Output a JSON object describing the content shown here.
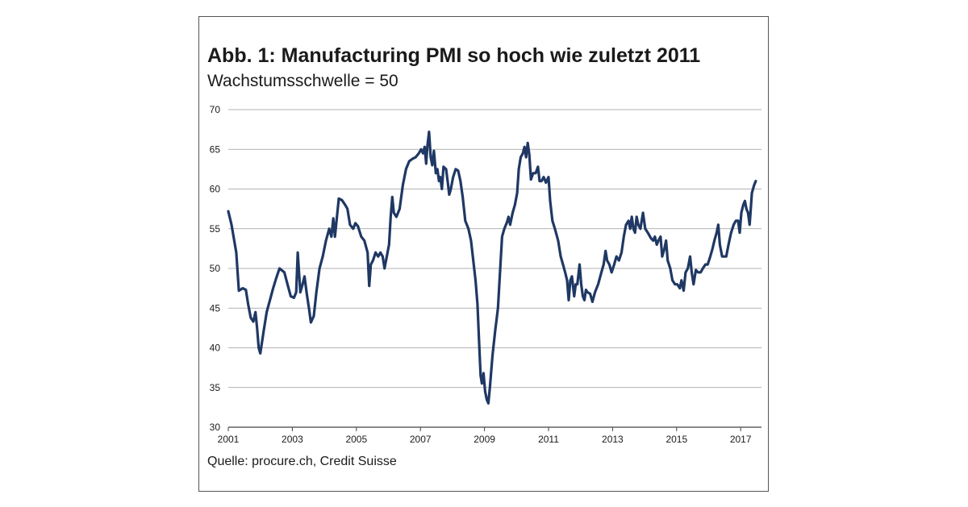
{
  "figure": {
    "title": "Abb. 1: Manufacturing PMI so hoch wie zuletzt 2011",
    "subtitle": "Wachstumsschwelle = 50",
    "source": "Quelle: procure.ch, Credit Suisse"
  },
  "chart_data": {
    "type": "line",
    "title": "Abb. 1: Manufacturing PMI so hoch wie zuletzt 2011",
    "subtitle": "Wachstumsschwelle = 50",
    "xlabel": "",
    "ylabel": "",
    "xlim": [
      2001,
      2017.65
    ],
    "ylim": [
      30,
      70
    ],
    "yticks": [
      30,
      35,
      40,
      45,
      50,
      55,
      60,
      65,
      70
    ],
    "xticks": [
      "2001",
      "2003",
      "2005",
      "2007",
      "2009",
      "2011",
      "2013",
      "2015",
      "2017"
    ],
    "grid": "horizontal",
    "line_color": "#1f3864",
    "series": [
      {
        "values": [
          [
            2001.0,
            57.2
          ],
          [
            2001.1,
            55.5
          ],
          [
            2001.25,
            52.0
          ],
          [
            2001.33,
            47.2
          ],
          [
            2001.45,
            47.5
          ],
          [
            2001.55,
            47.3
          ],
          [
            2001.62,
            45.5
          ],
          [
            2001.7,
            43.8
          ],
          [
            2001.78,
            43.3
          ],
          [
            2001.85,
            44.5
          ],
          [
            2001.9,
            42.5
          ],
          [
            2001.95,
            40.0
          ],
          [
            2002.0,
            39.3
          ],
          [
            2002.1,
            42.0
          ],
          [
            2002.2,
            44.5
          ],
          [
            2002.3,
            46.0
          ],
          [
            2002.4,
            47.5
          ],
          [
            2002.5,
            48.8
          ],
          [
            2002.6,
            50.0
          ],
          [
            2002.75,
            49.5
          ],
          [
            2002.85,
            48.0
          ],
          [
            2002.95,
            46.5
          ],
          [
            2003.05,
            46.3
          ],
          [
            2003.12,
            47.0
          ],
          [
            2003.17,
            52.0
          ],
          [
            2003.25,
            47.0
          ],
          [
            2003.32,
            48.0
          ],
          [
            2003.38,
            49.0
          ],
          [
            2003.45,
            46.8
          ],
          [
            2003.52,
            45.0
          ],
          [
            2003.58,
            43.2
          ],
          [
            2003.67,
            44.0
          ],
          [
            2003.75,
            47.0
          ],
          [
            2003.85,
            50.0
          ],
          [
            2003.95,
            51.5
          ],
          [
            2004.05,
            53.5
          ],
          [
            2004.15,
            55.0
          ],
          [
            2004.22,
            54.0
          ],
          [
            2004.28,
            56.3
          ],
          [
            2004.33,
            54.0
          ],
          [
            2004.38,
            56.0
          ],
          [
            2004.45,
            58.8
          ],
          [
            2004.55,
            58.6
          ],
          [
            2004.65,
            58.0
          ],
          [
            2004.72,
            57.5
          ],
          [
            2004.8,
            55.5
          ],
          [
            2004.9,
            55.0
          ],
          [
            2004.97,
            55.7
          ],
          [
            2005.05,
            55.3
          ],
          [
            2005.15,
            54.0
          ],
          [
            2005.25,
            53.5
          ],
          [
            2005.35,
            52.0
          ],
          [
            2005.4,
            47.8
          ],
          [
            2005.45,
            50.5
          ],
          [
            2005.52,
            51.0
          ],
          [
            2005.6,
            52.0
          ],
          [
            2005.68,
            51.5
          ],
          [
            2005.75,
            52.0
          ],
          [
            2005.82,
            51.5
          ],
          [
            2005.88,
            50.0
          ],
          [
            2005.95,
            51.5
          ],
          [
            2006.02,
            53.0
          ],
          [
            2006.07,
            56.5
          ],
          [
            2006.12,
            59.0
          ],
          [
            2006.17,
            57.0
          ],
          [
            2006.25,
            56.5
          ],
          [
            2006.35,
            57.5
          ],
          [
            2006.45,
            60.5
          ],
          [
            2006.55,
            62.5
          ],
          [
            2006.65,
            63.5
          ],
          [
            2006.75,
            63.8
          ],
          [
            2006.85,
            64.0
          ],
          [
            2006.95,
            64.5
          ],
          [
            2007.02,
            65.0
          ],
          [
            2007.08,
            64.5
          ],
          [
            2007.13,
            65.3
          ],
          [
            2007.18,
            63.2
          ],
          [
            2007.22,
            65.5
          ],
          [
            2007.27,
            67.2
          ],
          [
            2007.32,
            64.0
          ],
          [
            2007.37,
            63.0
          ],
          [
            2007.42,
            64.8
          ],
          [
            2007.48,
            62.0
          ],
          [
            2007.53,
            62.5
          ],
          [
            2007.58,
            61.0
          ],
          [
            2007.62,
            61.5
          ],
          [
            2007.67,
            60.0
          ],
          [
            2007.72,
            62.8
          ],
          [
            2007.8,
            62.5
          ],
          [
            2007.85,
            61.0
          ],
          [
            2007.9,
            59.3
          ],
          [
            2007.95,
            60.0
          ],
          [
            2008.02,
            61.5
          ],
          [
            2008.1,
            62.5
          ],
          [
            2008.18,
            62.3
          ],
          [
            2008.25,
            61.0
          ],
          [
            2008.32,
            59.0
          ],
          [
            2008.4,
            56.0
          ],
          [
            2008.5,
            55.0
          ],
          [
            2008.58,
            53.5
          ],
          [
            2008.65,
            51.0
          ],
          [
            2008.72,
            48.5
          ],
          [
            2008.78,
            45.5
          ],
          [
            2008.83,
            41.0
          ],
          [
            2008.88,
            36.5
          ],
          [
            2008.92,
            35.5
          ],
          [
            2008.97,
            36.8
          ],
          [
            2009.02,
            34.5
          ],
          [
            2009.07,
            33.5
          ],
          [
            2009.12,
            33.0
          ],
          [
            2009.17,
            35.0
          ],
          [
            2009.25,
            39.0
          ],
          [
            2009.33,
            42.0
          ],
          [
            2009.42,
            45.0
          ],
          [
            2009.5,
            50.5
          ],
          [
            2009.55,
            54.0
          ],
          [
            2009.62,
            55.0
          ],
          [
            2009.7,
            55.8
          ],
          [
            2009.75,
            56.5
          ],
          [
            2009.8,
            55.5
          ],
          [
            2009.88,
            57.0
          ],
          [
            2009.95,
            58.0
          ],
          [
            2010.02,
            59.5
          ],
          [
            2010.07,
            62.5
          ],
          [
            2010.13,
            64.0
          ],
          [
            2010.2,
            64.5
          ],
          [
            2010.25,
            65.3
          ],
          [
            2010.3,
            64.0
          ],
          [
            2010.35,
            65.8
          ],
          [
            2010.4,
            64.3
          ],
          [
            2010.45,
            61.2
          ],
          [
            2010.52,
            62.0
          ],
          [
            2010.6,
            62.0
          ],
          [
            2010.67,
            62.8
          ],
          [
            2010.72,
            61.0
          ],
          [
            2010.78,
            61.0
          ],
          [
            2010.85,
            61.5
          ],
          [
            2010.92,
            60.8
          ],
          [
            2011.0,
            61.5
          ],
          [
            2011.05,
            58.5
          ],
          [
            2011.12,
            56.0
          ],
          [
            2011.2,
            55.0
          ],
          [
            2011.3,
            53.5
          ],
          [
            2011.38,
            51.5
          ],
          [
            2011.45,
            50.5
          ],
          [
            2011.52,
            49.5
          ],
          [
            2011.58,
            48.5
          ],
          [
            2011.63,
            46.0
          ],
          [
            2011.68,
            48.5
          ],
          [
            2011.73,
            49.0
          ],
          [
            2011.8,
            46.5
          ],
          [
            2011.85,
            48.0
          ],
          [
            2011.9,
            48.0
          ],
          [
            2011.97,
            50.5
          ],
          [
            2012.02,
            48.0
          ],
          [
            2012.07,
            46.5
          ],
          [
            2012.12,
            46.0
          ],
          [
            2012.17,
            47.3
          ],
          [
            2012.22,
            47.0
          ],
          [
            2012.3,
            46.8
          ],
          [
            2012.37,
            45.8
          ],
          [
            2012.45,
            47.0
          ],
          [
            2012.55,
            48.0
          ],
          [
            2012.65,
            49.5
          ],
          [
            2012.72,
            50.5
          ],
          [
            2012.78,
            52.2
          ],
          [
            2012.83,
            51.0
          ],
          [
            2012.9,
            50.5
          ],
          [
            2012.97,
            49.5
          ],
          [
            2013.05,
            50.5
          ],
          [
            2013.12,
            51.5
          ],
          [
            2013.2,
            51.0
          ],
          [
            2013.28,
            52.0
          ],
          [
            2013.35,
            54.0
          ],
          [
            2013.42,
            55.5
          ],
          [
            2013.5,
            56.0
          ],
          [
            2013.55,
            55.0
          ],
          [
            2013.6,
            56.5
          ],
          [
            2013.65,
            55.0
          ],
          [
            2013.7,
            54.5
          ],
          [
            2013.75,
            56.5
          ],
          [
            2013.8,
            55.5
          ],
          [
            2013.87,
            55.0
          ],
          [
            2013.95,
            57.0
          ],
          [
            2014.02,
            55.0
          ],
          [
            2014.1,
            54.5
          ],
          [
            2014.2,
            53.8
          ],
          [
            2014.27,
            53.5
          ],
          [
            2014.32,
            54.0
          ],
          [
            2014.38,
            53.0
          ],
          [
            2014.43,
            53.5
          ],
          [
            2014.5,
            54.0
          ],
          [
            2014.55,
            51.5
          ],
          [
            2014.62,
            52.5
          ],
          [
            2014.67,
            53.5
          ],
          [
            2014.72,
            51.0
          ],
          [
            2014.8,
            50.0
          ],
          [
            2014.87,
            48.5
          ],
          [
            2014.95,
            48.0
          ],
          [
            2015.02,
            48.0
          ],
          [
            2015.1,
            47.5
          ],
          [
            2015.15,
            48.5
          ],
          [
            2015.22,
            47.2
          ],
          [
            2015.28,
            49.5
          ],
          [
            2015.35,
            50.0
          ],
          [
            2015.42,
            51.5
          ],
          [
            2015.47,
            49.5
          ],
          [
            2015.53,
            48.0
          ],
          [
            2015.6,
            49.8
          ],
          [
            2015.67,
            49.5
          ],
          [
            2015.75,
            49.5
          ],
          [
            2015.82,
            50.0
          ],
          [
            2015.9,
            50.5
          ],
          [
            2015.97,
            50.5
          ],
          [
            2016.05,
            51.5
          ],
          [
            2016.12,
            52.5
          ],
          [
            2016.18,
            53.5
          ],
          [
            2016.25,
            54.5
          ],
          [
            2016.3,
            55.5
          ],
          [
            2016.35,
            53.0
          ],
          [
            2016.42,
            51.5
          ],
          [
            2016.48,
            51.5
          ],
          [
            2016.55,
            51.5
          ],
          [
            2016.62,
            53.0
          ],
          [
            2016.7,
            54.5
          ],
          [
            2016.78,
            55.5
          ],
          [
            2016.85,
            56.0
          ],
          [
            2016.92,
            56.0
          ],
          [
            2016.97,
            54.5
          ],
          [
            2017.02,
            57.0
          ],
          [
            2017.08,
            58.0
          ],
          [
            2017.13,
            58.5
          ],
          [
            2017.18,
            57.5
          ],
          [
            2017.23,
            57.0
          ],
          [
            2017.28,
            55.5
          ],
          [
            2017.35,
            59.5
          ],
          [
            2017.42,
            60.5
          ],
          [
            2017.47,
            61.0
          ]
        ]
      }
    ]
  }
}
